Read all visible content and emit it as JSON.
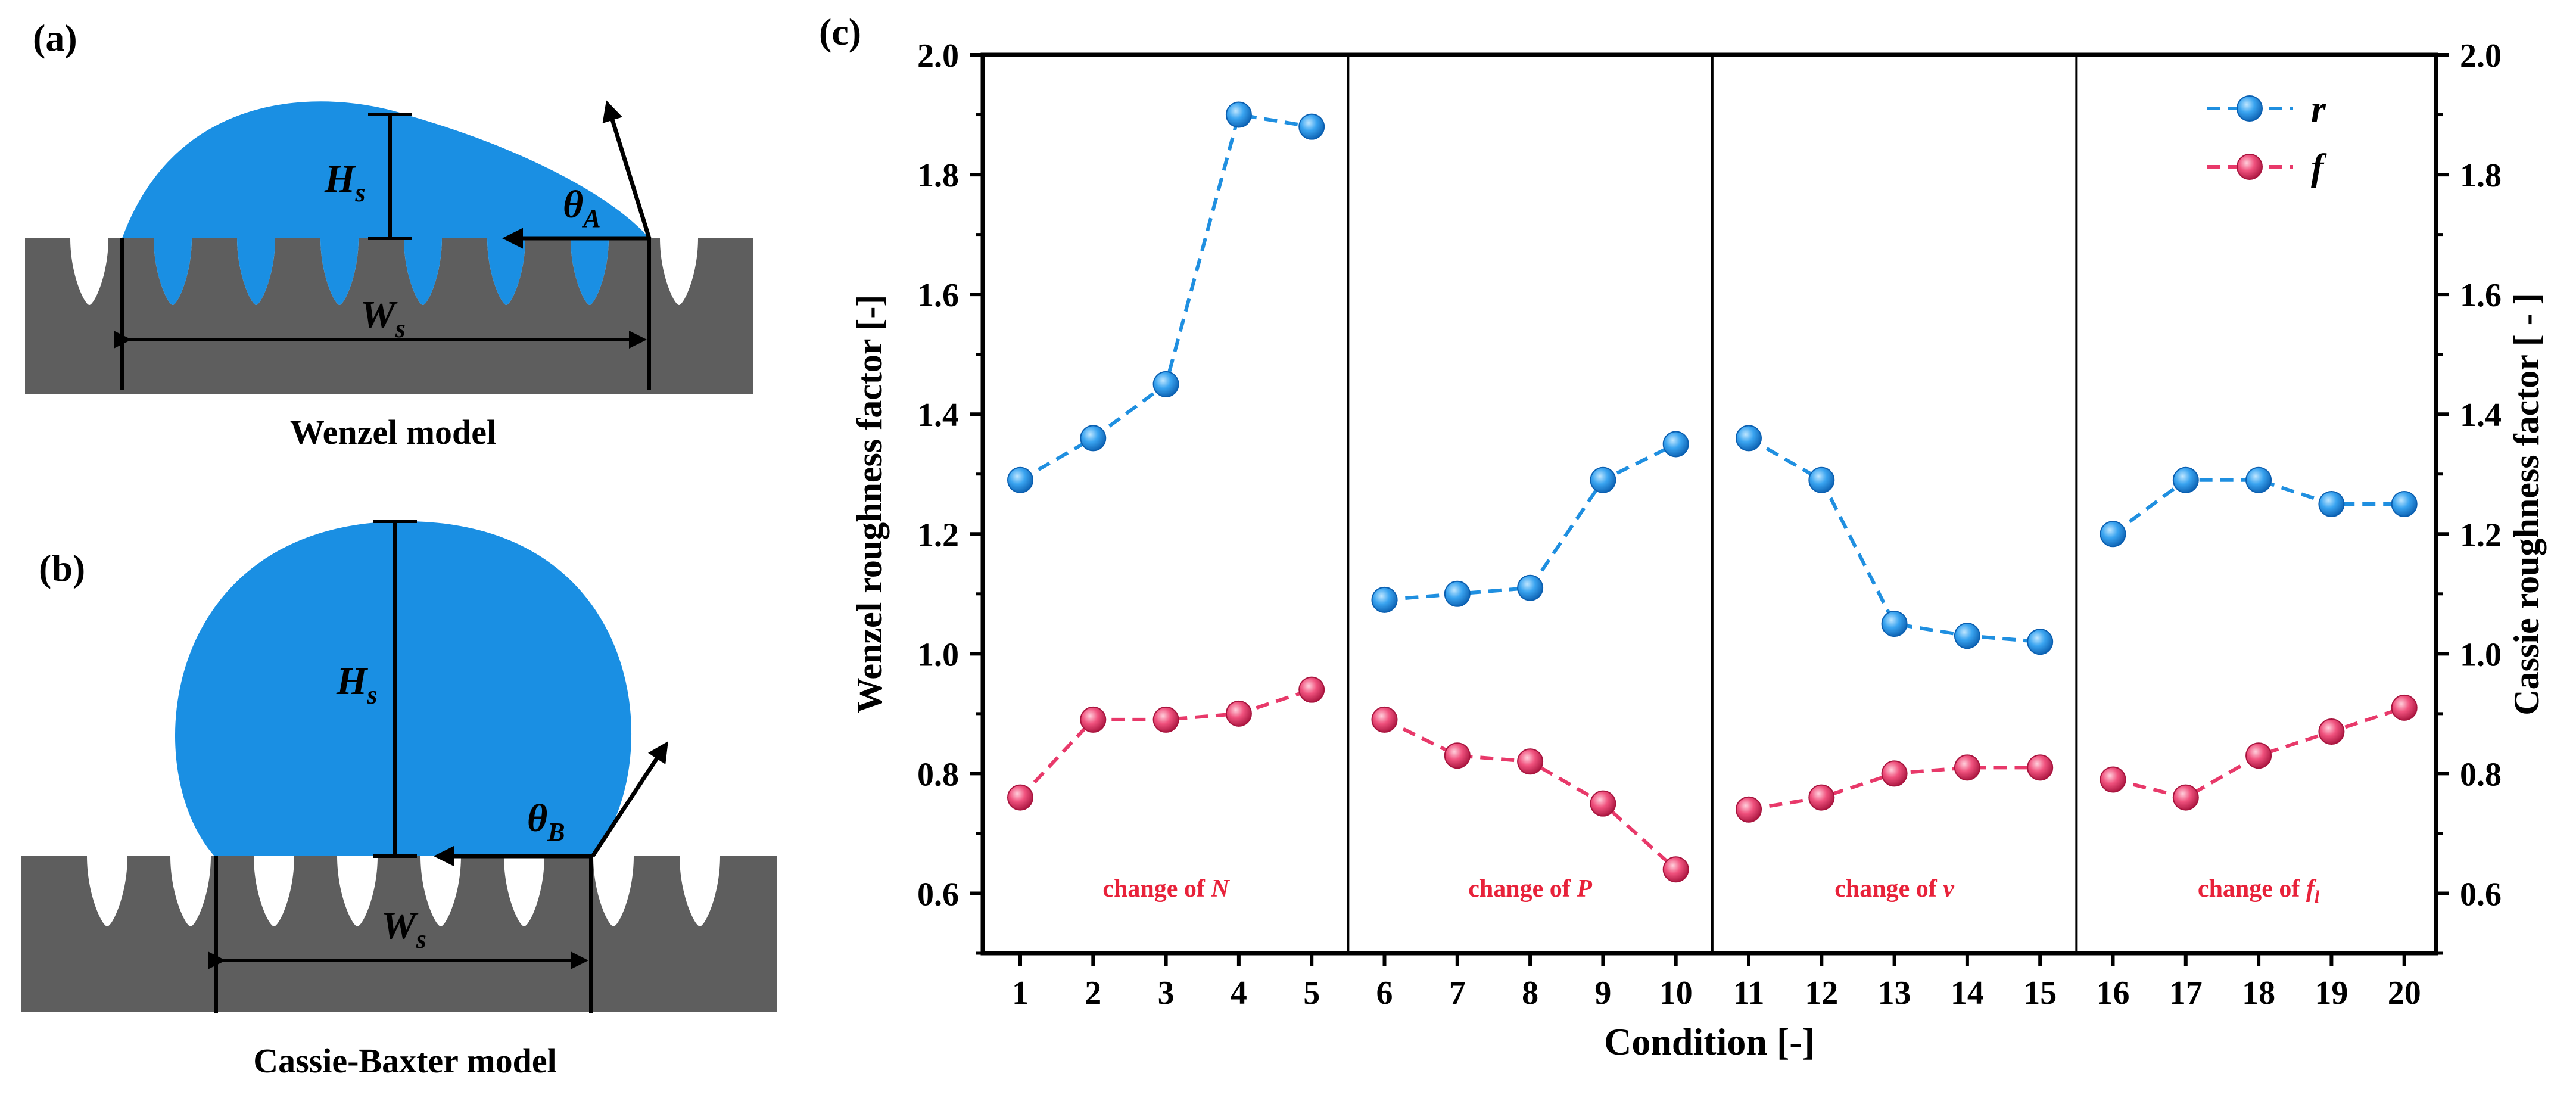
{
  "panels": {
    "a": {
      "letter": "(a)",
      "caption": "Wenzel model",
      "height_symbol": "H",
      "height_subscript": "s",
      "width_symbol": "W",
      "width_subscript": "s",
      "angle_symbol": "θ",
      "angle_subscript": "A"
    },
    "b": {
      "letter": "(b)",
      "caption": "Cassie-Baxter model",
      "height_symbol": "H",
      "height_subscript": "s",
      "width_symbol": "W",
      "width_subscript": "s",
      "angle_symbol": "θ",
      "angle_subscript": "B"
    },
    "c": {
      "letter": "(c)"
    }
  },
  "colors": {
    "droplet": "#1a8fe3",
    "substrate": "#5e5e5e",
    "series_r": "#1f8fe0",
    "series_f": "#e8396a",
    "group_label": "#e8223a",
    "axis": "#000000"
  },
  "chart_data": {
    "type": "line",
    "xlabel": "Condition [-]",
    "ylabel_left": "Wenzel roughness factor [-]",
    "ylabel_right": "Cassie roughness factor [ - ]",
    "ylim": [
      0.5,
      2.0
    ],
    "yticks": [
      0.6,
      0.8,
      1.0,
      1.2,
      1.4,
      1.6,
      1.8,
      2.0
    ],
    "ytick_labels": [
      "0.6",
      "0.8",
      "1.0",
      "1.2",
      "1.4",
      "1.6",
      "1.8",
      "2.0"
    ],
    "x": [
      1,
      2,
      3,
      4,
      5,
      6,
      7,
      8,
      9,
      10,
      11,
      12,
      13,
      14,
      15,
      16,
      17,
      18,
      19,
      20
    ],
    "xtick_labels": [
      "1",
      "2",
      "3",
      "4",
      "5",
      "6",
      "7",
      "8",
      "9",
      "10",
      "11",
      "12",
      "13",
      "14",
      "15",
      "16",
      "17",
      "18",
      "19",
      "20"
    ],
    "series": [
      {
        "name": "r",
        "values": [
          1.29,
          1.36,
          1.45,
          1.9,
          1.88,
          1.09,
          1.1,
          1.11,
          1.29,
          1.35,
          1.36,
          1.29,
          1.05,
          1.03,
          1.02,
          1.2,
          1.29,
          1.29,
          1.25,
          1.25
        ]
      },
      {
        "name": "f",
        "values": [
          0.76,
          0.89,
          0.89,
          0.9,
          0.94,
          0.89,
          0.83,
          0.82,
          0.75,
          0.64,
          0.74,
          0.76,
          0.8,
          0.81,
          0.81,
          0.79,
          0.76,
          0.83,
          0.87,
          0.91
        ]
      }
    ],
    "groups": [
      {
        "label_prefix": "change of ",
        "label_var": "N",
        "label_sub": "",
        "range": [
          1,
          5
        ]
      },
      {
        "label_prefix": "change of ",
        "label_var": "P",
        "label_sub": "",
        "range": [
          6,
          10
        ]
      },
      {
        "label_prefix": "change of ",
        "label_var": "v",
        "label_sub": "",
        "range": [
          11,
          15
        ]
      },
      {
        "label_prefix": "change of ",
        "label_var": "f",
        "label_sub": "l",
        "range": [
          16,
          20
        ]
      }
    ],
    "separators": [
      5.5,
      10.5,
      15.5
    ],
    "legend_position": "top-right"
  }
}
